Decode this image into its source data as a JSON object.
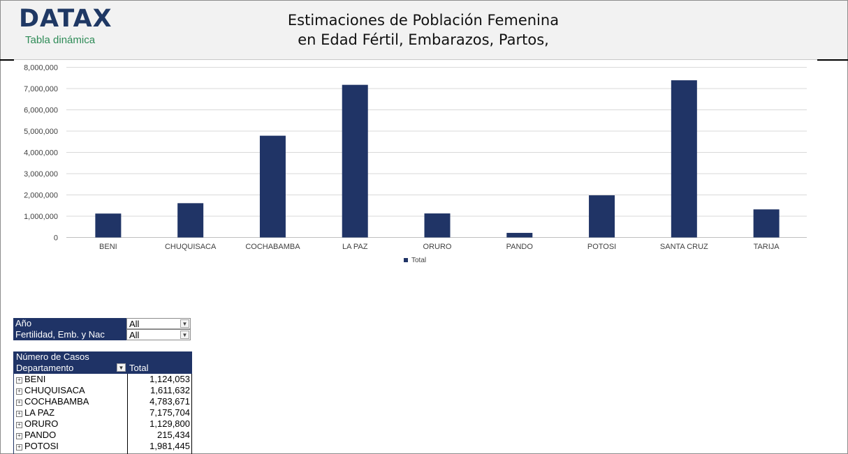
{
  "header": {
    "logo": "DATAX",
    "subtitle": "Tabla dinámica",
    "title_line1": "Estimaciones de Población Femenina",
    "title_line2": "en Edad Fértil, Embarazos, Partos,"
  },
  "colors": {
    "bar": "#203466",
    "header_bg": "#f2f2f2",
    "logo": "#1f3864",
    "subtitle": "#2e8b57"
  },
  "chart_data": {
    "type": "bar",
    "categories": [
      "BENI",
      "CHUQUISACA",
      "COCHABAMBA",
      "LA PAZ",
      "ORURO",
      "PANDO",
      "POTOSI",
      "SANTA CRUZ",
      "TARIJA"
    ],
    "series": [
      {
        "name": "Total",
        "values": [
          1124053,
          1611632,
          4783671,
          7175704,
          1129800,
          215434,
          1981445,
          7390000,
          1320000
        ]
      }
    ],
    "ylim": [
      0,
      8000000
    ],
    "yticks": [
      "0",
      "1,000,000",
      "2,000,000",
      "3,000,000",
      "4,000,000",
      "5,000,000",
      "6,000,000",
      "7,000,000",
      "8,000,000"
    ],
    "grid": true,
    "legend": "bottom"
  },
  "filters": [
    {
      "label": "Año",
      "value": "All"
    },
    {
      "label": "Fertilidad, Emb. y Nac",
      "value": "All"
    }
  ],
  "pivot": {
    "measure": "Número de Casos",
    "row_header": "Departamento",
    "value_header": "Total",
    "rows": [
      {
        "label": "BENI",
        "value": "1,124,053"
      },
      {
        "label": "CHUQUISACA",
        "value": "1,611,632"
      },
      {
        "label": "COCHABAMBA",
        "value": "4,783,671"
      },
      {
        "label": "LA PAZ",
        "value": "7,175,704"
      },
      {
        "label": "ORURO",
        "value": "1,129,800"
      },
      {
        "label": "PANDO",
        "value": "215,434"
      },
      {
        "label": "POTOSI",
        "value": "1,981,445"
      }
    ]
  }
}
